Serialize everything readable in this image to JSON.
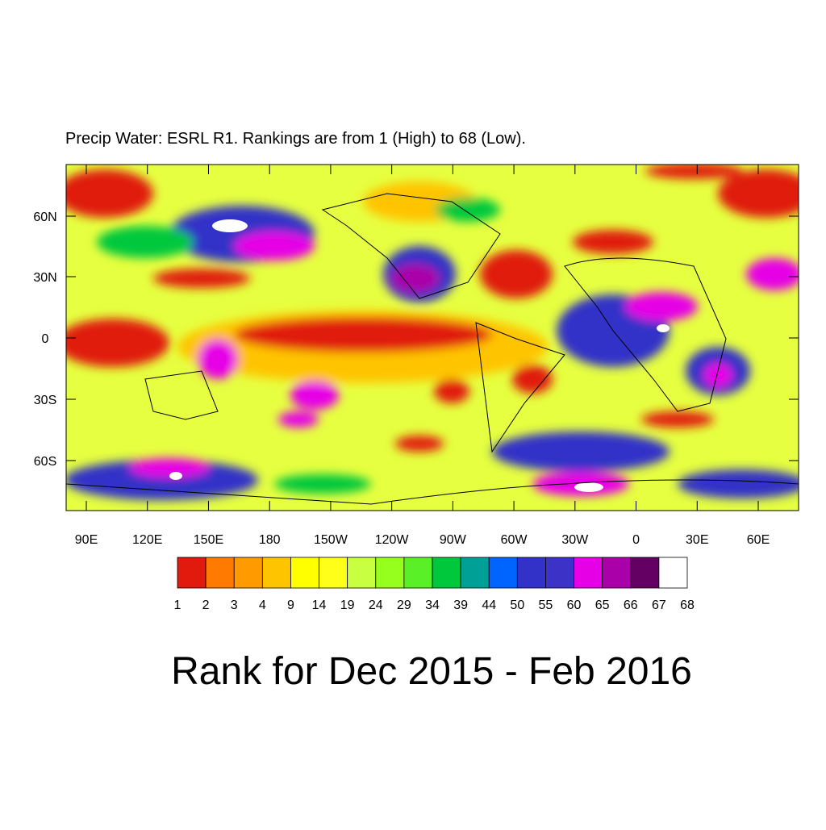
{
  "title": "Precip Water: ESRL R1. Rankings are from 1 (High) to 68 (Low).",
  "map": {
    "lat_labels": [
      "60N",
      "30N",
      "0",
      "30S",
      "60S"
    ],
    "lon_labels": [
      "90E",
      "120E",
      "150E",
      "180",
      "150W",
      "120W",
      "90W",
      "60W",
      "30W",
      "0",
      "30E",
      "60E"
    ]
  },
  "colorbar": {
    "labels": [
      1,
      2,
      3,
      4,
      9,
      14,
      19,
      24,
      29,
      34,
      39,
      44,
      50,
      55,
      60,
      65,
      66,
      67,
      68
    ],
    "colors": [
      "#e01a0c",
      "#ff7a00",
      "#ff9a00",
      "#ffc400",
      "#ffff00",
      "#ffff1a",
      "#c8ff40",
      "#96ff1e",
      "#5af028",
      "#00c83c",
      "#00a096",
      "#0064ff",
      "#3232c8",
      "#3c32c8",
      "#e600e6",
      "#aa00aa",
      "#640064",
      "#ffffff"
    ]
  },
  "footer_title": "Rank for Dec 2015 - Feb 2016"
}
